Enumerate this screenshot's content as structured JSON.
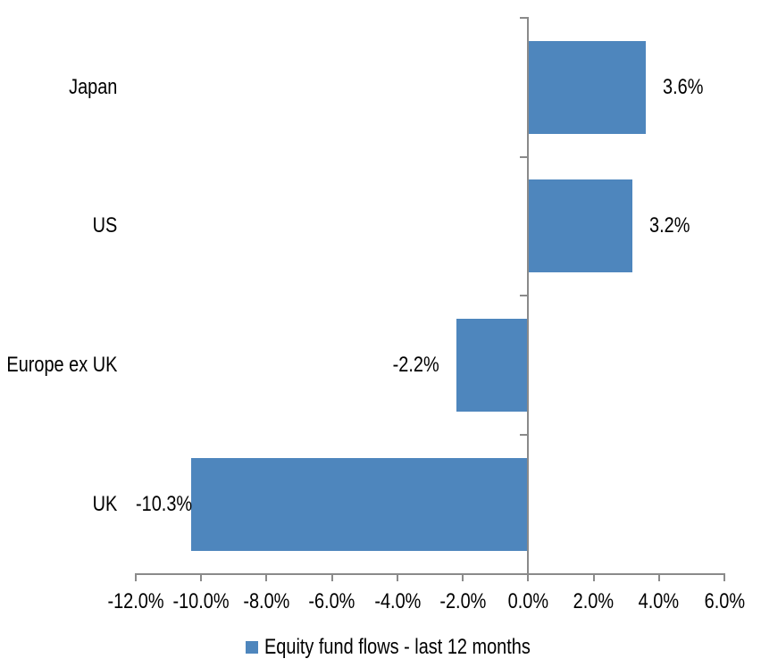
{
  "chart_data": {
    "type": "bar",
    "orientation": "horizontal",
    "title": "",
    "categories": [
      "Japan",
      "US",
      "Europe ex UK",
      "UK"
    ],
    "values": [
      3.6,
      3.2,
      -2.2,
      -10.3
    ],
    "data_labels": [
      "3.6%",
      "3.2%",
      "-2.2%",
      "-10.3%"
    ],
    "series": [
      {
        "name": "Equity fund flows - last 12 months",
        "values": [
          3.6,
          3.2,
          -2.2,
          -10.3
        ]
      }
    ],
    "xlim": [
      -12,
      6
    ],
    "x_tick_values": [
      -12,
      -10,
      -8,
      -6,
      -4,
      -2,
      0,
      2,
      4,
      6
    ],
    "x_tick_labels": [
      "-12.0%",
      "-10.0%",
      "-8.0%",
      "-6.0%",
      "-4.0%",
      "-2.0%",
      "0.0%",
      "2.0%",
      "4.0%",
      "6.0%"
    ],
    "grid": false,
    "legend_position": "bottom",
    "bar_color": "#4e86bd",
    "axis_color": "#8a8a8a",
    "text_color": "#000000"
  },
  "legend": {
    "label": "Equity fund flows - last 12 months",
    "swatch_color": "#4e86bd"
  }
}
